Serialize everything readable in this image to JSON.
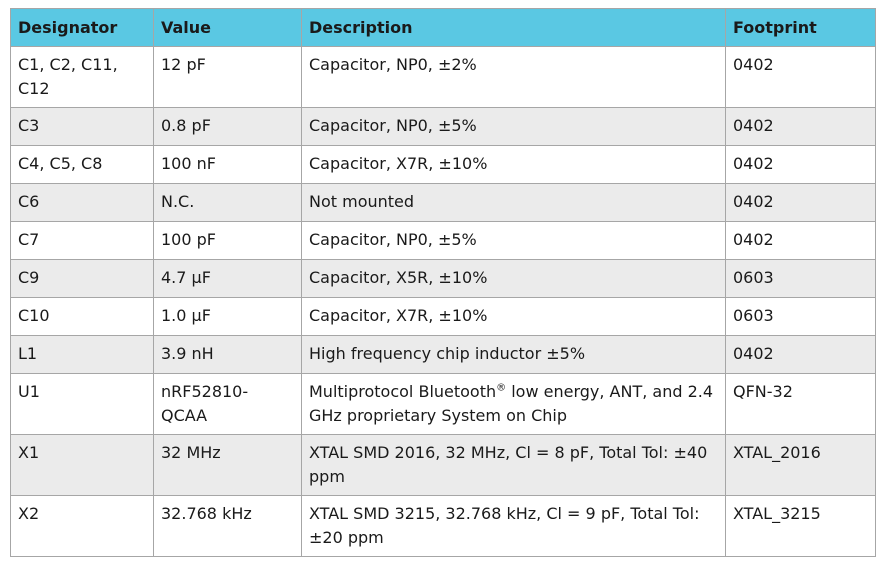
{
  "table": {
    "headers": [
      "Designator",
      "Value",
      "Description",
      "Footprint"
    ],
    "rows": [
      {
        "designator": "C1, C2, C11, C12",
        "value": "12 pF",
        "description": "Capacitor, NP0, ±2%",
        "footprint": "0402"
      },
      {
        "designator": "C3",
        "value": "0.8 pF",
        "description": "Capacitor, NP0, ±5%",
        "footprint": "0402"
      },
      {
        "designator": "C4, C5, C8",
        "value": "100 nF",
        "description": "Capacitor, X7R, ±10%",
        "footprint": "0402"
      },
      {
        "designator": "C6",
        "value": "N.C.",
        "description": "Not mounted",
        "footprint": "0402"
      },
      {
        "designator": "C7",
        "value": "100 pF",
        "description": "Capacitor, NP0, ±5%",
        "footprint": "0402"
      },
      {
        "designator": "C9",
        "value": "4.7 µF",
        "description": "Capacitor, X5R, ±10%",
        "footprint": "0603"
      },
      {
        "designator": "C10",
        "value": "1.0 µF",
        "description": "Capacitor, X7R, ±10%",
        "footprint": "0603"
      },
      {
        "designator": "L1",
        "value": "3.9 nH",
        "description": "High frequency chip inductor ±5%",
        "footprint": "0402"
      },
      {
        "designator": "U1",
        "value": "nRF52810-QCAA",
        "description": "Multiprotocol Bluetooth",
        "description_sup": "®",
        "description_rest": " low energy, ANT, and 2.4 GHz proprietary System on Chip",
        "footprint": "QFN-32"
      },
      {
        "designator": "X1",
        "value": "32 MHz",
        "description": "XTAL SMD 2016, 32 MHz, Cl = 8 pF, Total Tol: ±40 ppm",
        "footprint": "XTAL_2016"
      },
      {
        "designator": "X2",
        "value": "32.768 kHz",
        "description": "XTAL SMD 3215, 32.768 kHz, Cl = 9 pF, Total Tol: ±20 ppm",
        "footprint": "XTAL_3215"
      }
    ]
  }
}
